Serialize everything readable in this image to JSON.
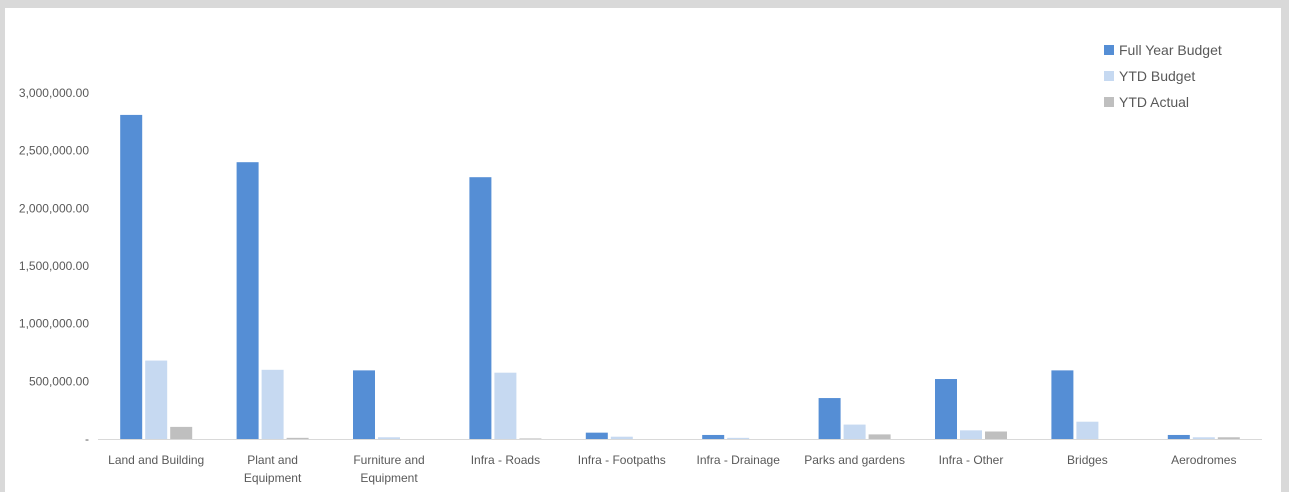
{
  "chart_data": {
    "type": "bar",
    "title": "",
    "xlabel": "",
    "ylabel": "",
    "ylim": [
      0,
      3000000
    ],
    "yticks": [
      0,
      500000,
      1000000,
      1500000,
      2000000,
      2500000,
      3000000
    ],
    "ytick_labels": [
      "-",
      "500,000.00",
      "1,000,000.00",
      "1,500,000.00",
      "2,000,000.00",
      "2,500,000.00",
      "3,000,000.00"
    ],
    "grid": false,
    "legend_position": "top-right",
    "categories": [
      [
        "Land and Building"
      ],
      [
        "Plant and",
        "Equipment"
      ],
      [
        "Furniture and",
        "Equipment"
      ],
      [
        "Infra - Roads"
      ],
      [
        "Infra - Footpaths"
      ],
      [
        "Infra - Drainage"
      ],
      [
        "Parks and gardens"
      ],
      [
        "Infra - Other"
      ],
      [
        "Bridges"
      ],
      [
        "Aerodromes"
      ]
    ],
    "series": [
      {
        "name": "Full Year Budget",
        "color": "#558ed5",
        "values": [
          2810000,
          2400000,
          595000,
          2270000,
          55000,
          35000,
          355000,
          520000,
          595000,
          35000
        ]
      },
      {
        "name": "YTD Budget",
        "color": "#c6d9f1",
        "values": [
          680000,
          600000,
          15000,
          575000,
          20000,
          10000,
          125000,
          75000,
          150000,
          15000
        ]
      },
      {
        "name": "YTD Actual",
        "color": "#bfbfbf",
        "values": [
          105000,
          10000,
          0,
          5000,
          0,
          0,
          40000,
          65000,
          0,
          15000
        ]
      }
    ]
  }
}
